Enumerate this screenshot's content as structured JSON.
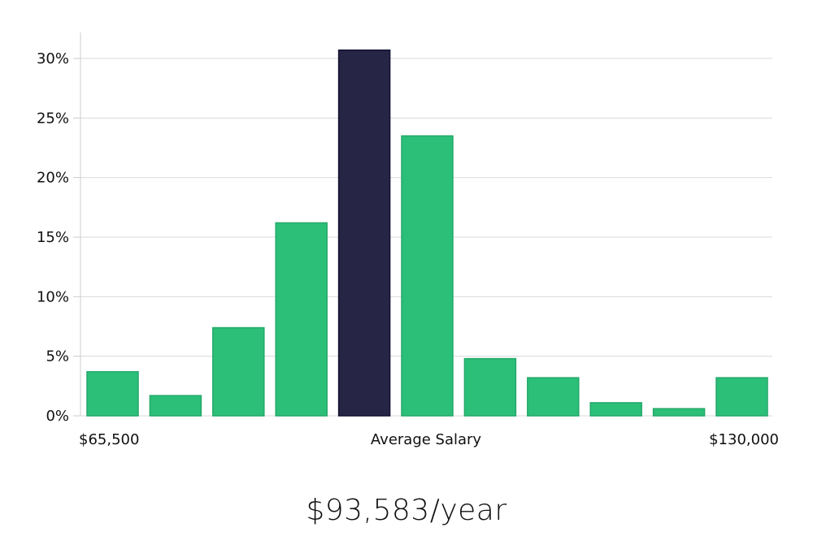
{
  "chart_data": {
    "type": "bar",
    "values": [
      3.7,
      1.7,
      7.4,
      16.2,
      30.7,
      23.5,
      4.8,
      3.2,
      1.1,
      0.6,
      3.2
    ],
    "highlight_index": 4,
    "ylim": [
      0,
      32
    ],
    "y_ticks": [
      {
        "value": 0,
        "label": "0%"
      },
      {
        "value": 5,
        "label": "5%"
      },
      {
        "value": 10,
        "label": "10%"
      },
      {
        "value": 15,
        "label": "15%"
      },
      {
        "value": 20,
        "label": "20%"
      },
      {
        "value": 25,
        "label": "25%"
      },
      {
        "value": 30,
        "label": "30%"
      }
    ],
    "x_labels": {
      "left": "$65,500",
      "center": "Average Salary",
      "right": "$130,000"
    },
    "grid": "horizontal",
    "colors": {
      "bar": "#2bbf78",
      "highlight": "#272545",
      "grid": "#d9d9d9",
      "axis": "#cccccc"
    }
  },
  "salary_figure": "$93,583/year"
}
